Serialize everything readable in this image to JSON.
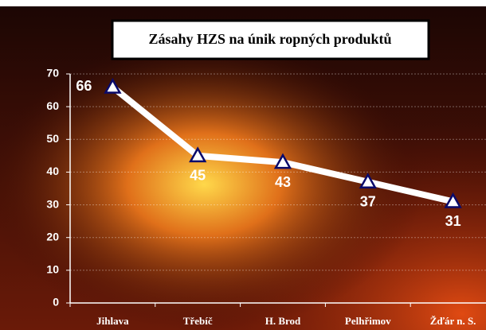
{
  "chart_data": {
    "type": "line",
    "title": "Zásahy HZS na únik ropných produktů",
    "categories": [
      "Jihlava",
      "Třebíč",
      "H. Brod",
      "Pelhřimov",
      "Žďár n. S."
    ],
    "values": [
      66,
      45,
      43,
      37,
      31
    ],
    "color": "#ffffff",
    "ylim": [
      0,
      70
    ],
    "yticks": [
      0,
      10,
      20,
      30,
      40,
      50,
      60,
      70
    ],
    "grid": true
  }
}
